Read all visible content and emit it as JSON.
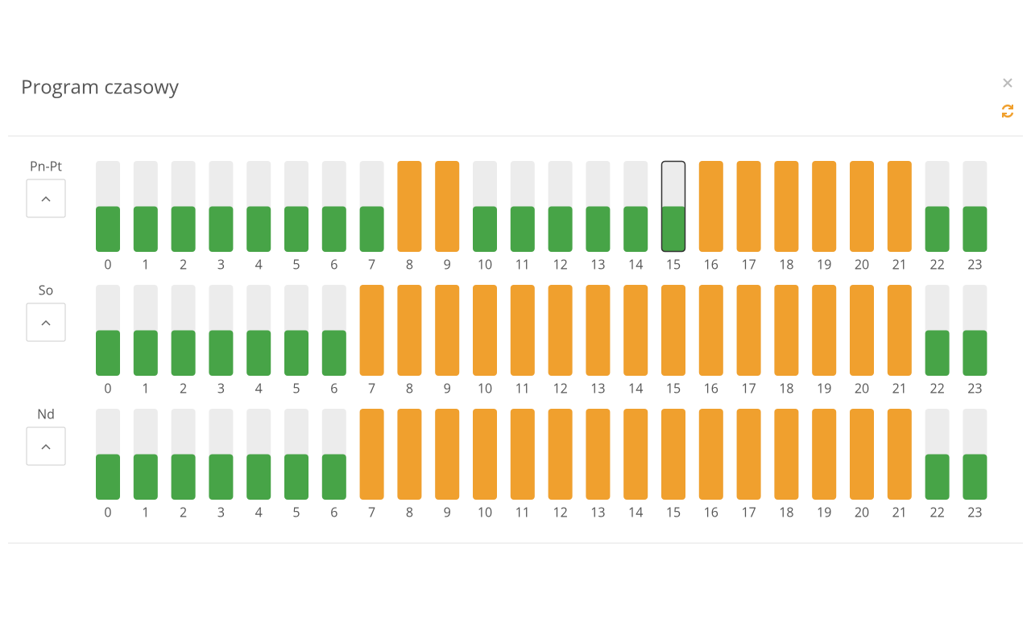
{
  "header": {
    "title": "Program czasowy"
  },
  "colors": {
    "eco": "#47a447",
    "comfort": "#f0a02e",
    "track": "#ececec"
  },
  "level_max": 2,
  "rows": [
    {
      "label": "Pn-Pt",
      "selected_hour": 15,
      "hours": [
        0,
        1,
        2,
        3,
        4,
        5,
        6,
        7,
        8,
        9,
        10,
        11,
        12,
        13,
        14,
        15,
        16,
        17,
        18,
        19,
        20,
        21,
        22,
        23
      ],
      "levels": [
        1,
        1,
        1,
        1,
        1,
        1,
        1,
        1,
        2,
        2,
        1,
        1,
        1,
        1,
        1,
        1,
        2,
        2,
        2,
        2,
        2,
        2,
        1,
        1
      ]
    },
    {
      "label": "So",
      "hours": [
        0,
        1,
        2,
        3,
        4,
        5,
        6,
        7,
        8,
        9,
        10,
        11,
        12,
        13,
        14,
        15,
        16,
        17,
        18,
        19,
        20,
        21,
        22,
        23
      ],
      "levels": [
        1,
        1,
        1,
        1,
        1,
        1,
        1,
        2,
        2,
        2,
        2,
        2,
        2,
        2,
        2,
        2,
        2,
        2,
        2,
        2,
        2,
        2,
        1,
        1
      ]
    },
    {
      "label": "Nd",
      "hours": [
        0,
        1,
        2,
        3,
        4,
        5,
        6,
        7,
        8,
        9,
        10,
        11,
        12,
        13,
        14,
        15,
        16,
        17,
        18,
        19,
        20,
        21,
        22,
        23
      ],
      "levels": [
        1,
        1,
        1,
        1,
        1,
        1,
        1,
        2,
        2,
        2,
        2,
        2,
        2,
        2,
        2,
        2,
        2,
        2,
        2,
        2,
        2,
        2,
        1,
        1
      ]
    }
  ]
}
